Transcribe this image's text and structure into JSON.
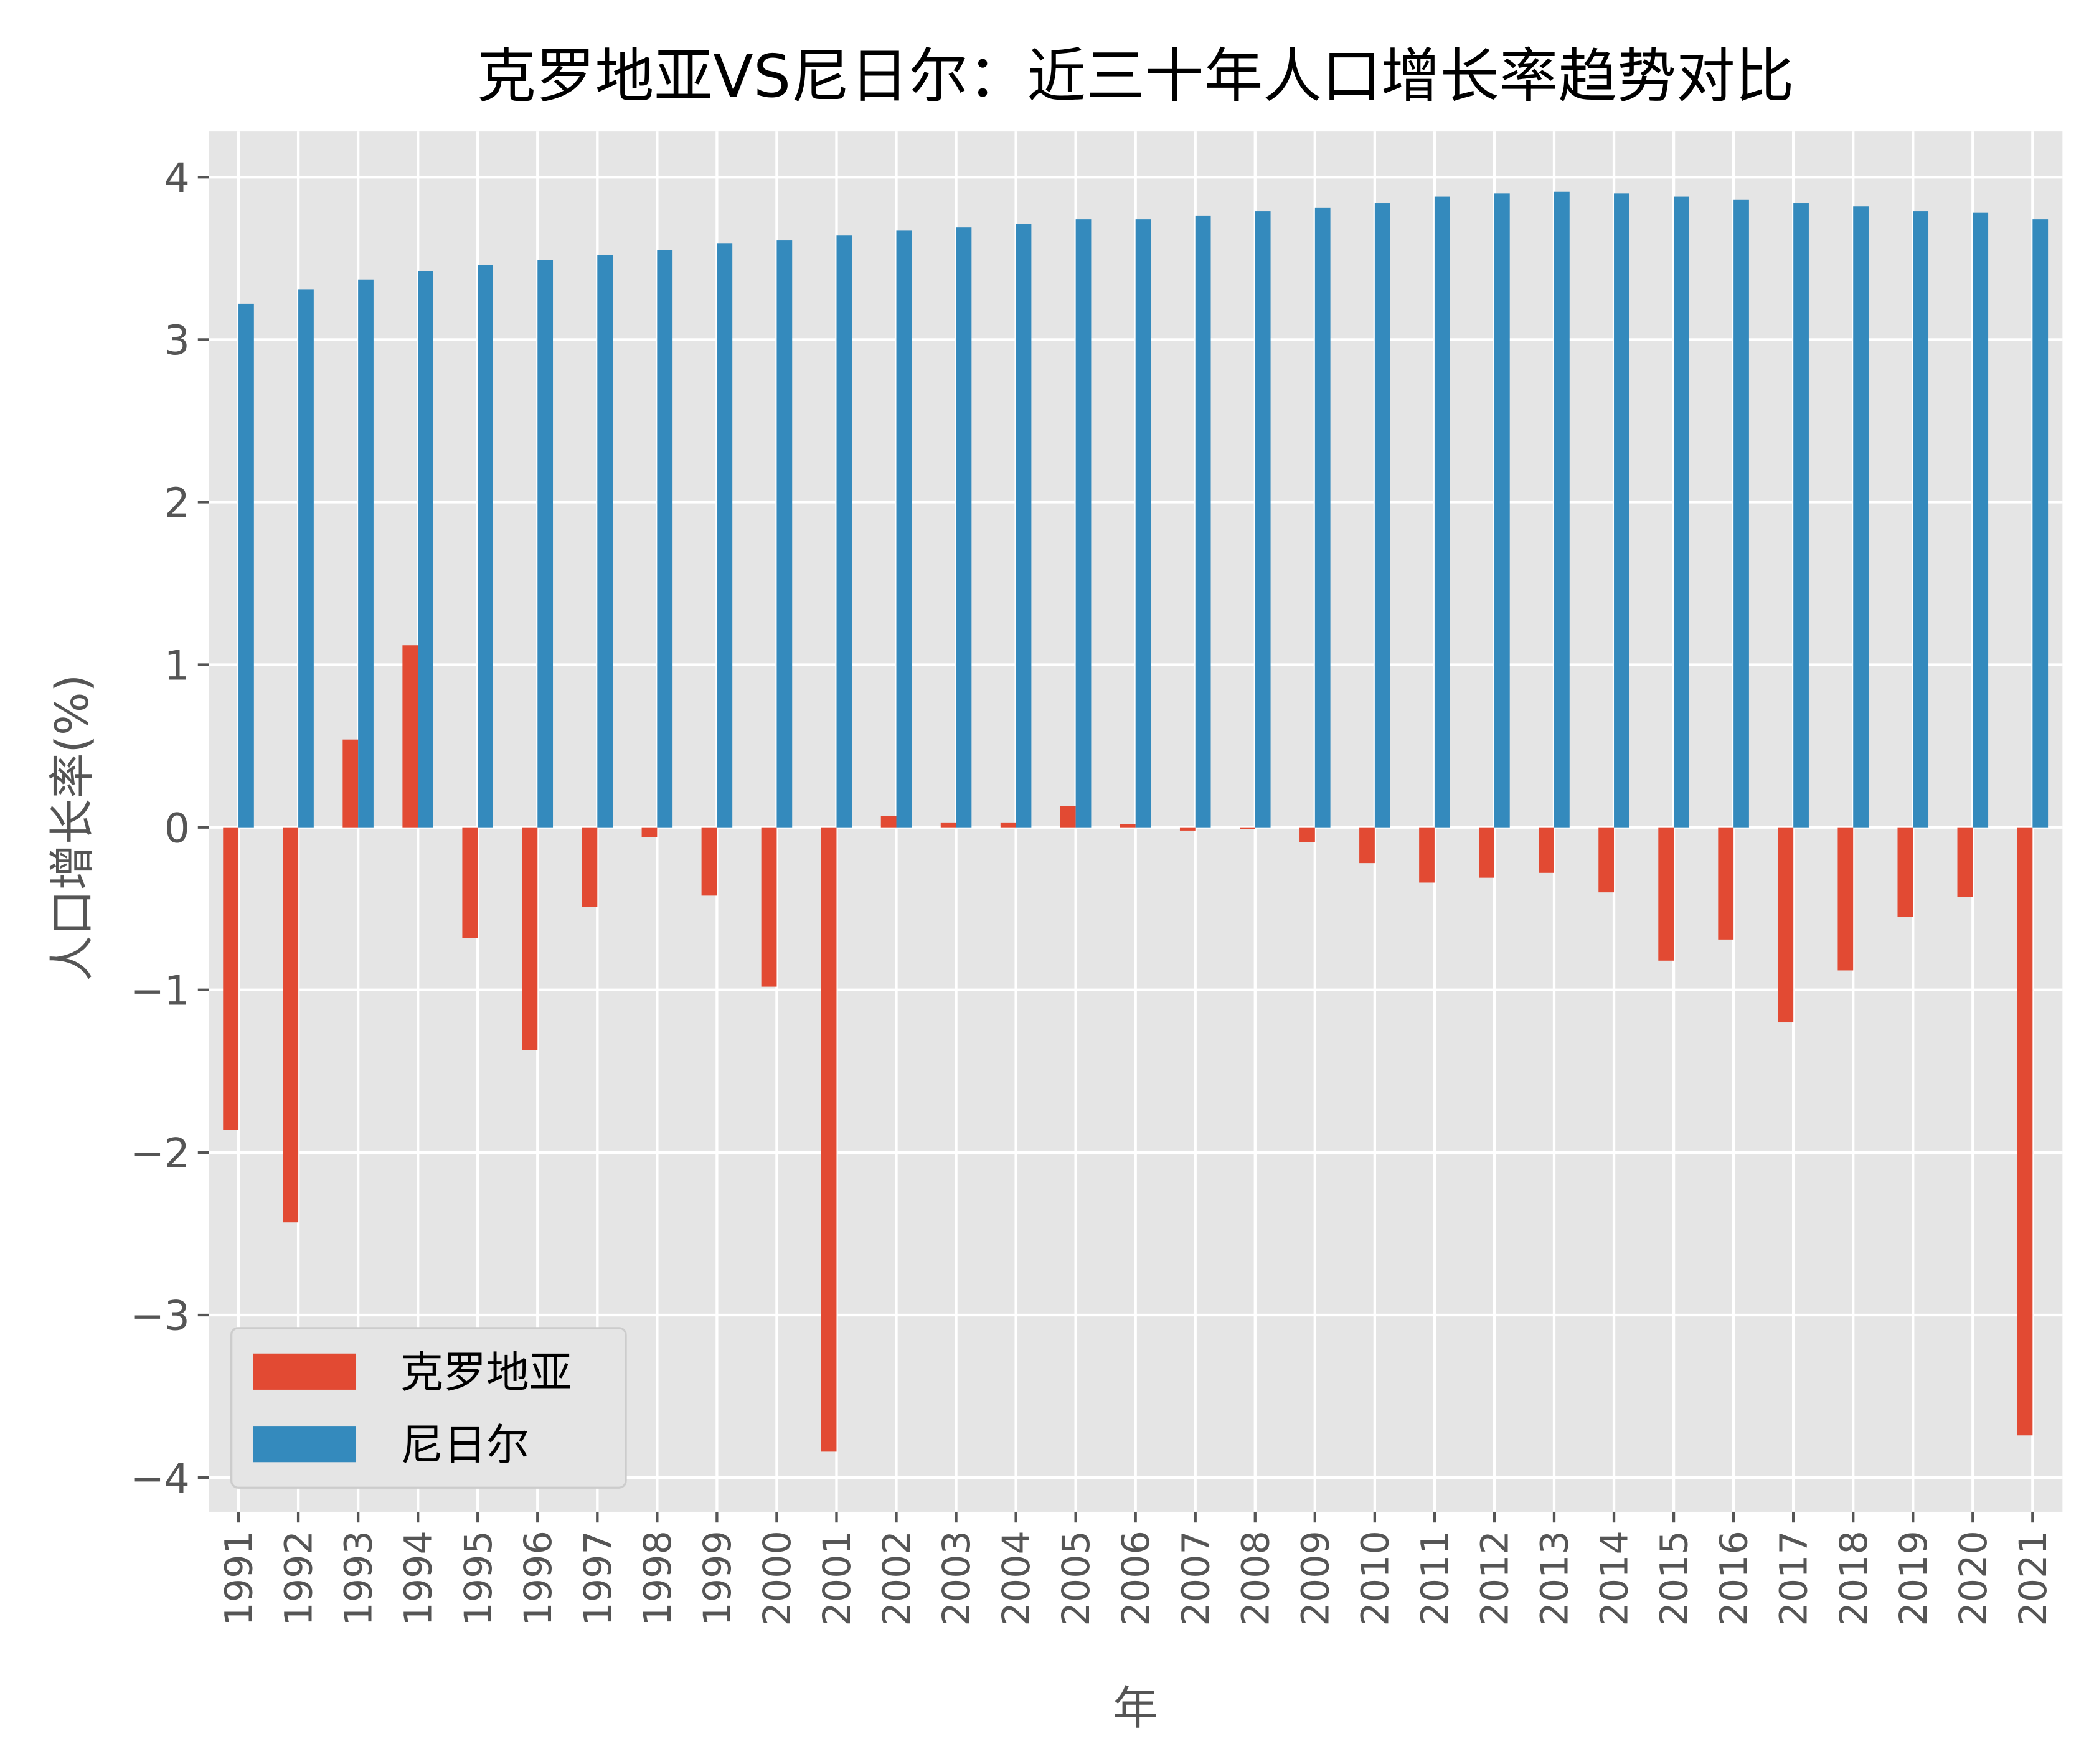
{
  "chart_data": {
    "type": "bar",
    "title": "克罗地亚VS尼日尔：近三十年人口增长率趋势对比",
    "xlabel": "年",
    "ylabel": "人口增长率(%)",
    "ylim": [
      -4.21,
      4.28
    ],
    "yticks": [
      -4,
      -3,
      -2,
      -1,
      0,
      1,
      2,
      3,
      4
    ],
    "grid": true,
    "legend_placement": "lower-left",
    "categories": [
      "1991",
      "1992",
      "1993",
      "1994",
      "1995",
      "1996",
      "1997",
      "1998",
      "1999",
      "2000",
      "2001",
      "2002",
      "2003",
      "2004",
      "2005",
      "2006",
      "2007",
      "2008",
      "2009",
      "2010",
      "2011",
      "2012",
      "2013",
      "2014",
      "2015",
      "2016",
      "2017",
      "2018",
      "2019",
      "2020",
      "2021"
    ],
    "series": [
      {
        "name": "克罗地亚",
        "color": "#E24A33",
        "values": [
          -1.86,
          -2.43,
          0.54,
          1.12,
          -0.68,
          -1.37,
          -0.49,
          -0.06,
          -0.42,
          -0.98,
          -3.84,
          0.07,
          0.03,
          0.03,
          0.13,
          0.02,
          -0.02,
          -0.01,
          -0.09,
          -0.22,
          -0.34,
          -0.31,
          -0.28,
          -0.4,
          -0.82,
          -0.69,
          -1.2,
          -0.88,
          -0.55,
          -0.43,
          -3.74
        ]
      },
      {
        "name": "尼日尔",
        "color": "#348ABD",
        "values": [
          3.22,
          3.31,
          3.37,
          3.42,
          3.46,
          3.49,
          3.52,
          3.55,
          3.59,
          3.61,
          3.64,
          3.67,
          3.69,
          3.71,
          3.74,
          3.74,
          3.76,
          3.79,
          3.81,
          3.84,
          3.88,
          3.9,
          3.91,
          3.9,
          3.88,
          3.86,
          3.84,
          3.82,
          3.79,
          3.78,
          3.74
        ]
      }
    ]
  }
}
